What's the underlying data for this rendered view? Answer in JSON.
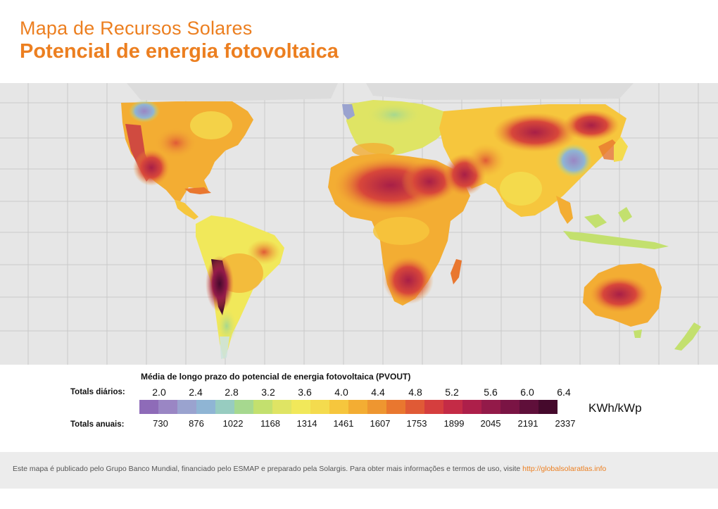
{
  "title": {
    "line1": "Mapa de Recursos Solares",
    "line2": "Potencial de energia fotovoltaica"
  },
  "legend": {
    "caption": "Média de longo prazo do potencial de energia fotovoltaica (PVOUT)",
    "daily_label": "Totals diários:",
    "annual_label": "Totals anuais:",
    "daily_ticks": [
      "2.0",
      "2.4",
      "2.8",
      "3.2",
      "3.6",
      "4.0",
      "4.4",
      "4.8",
      "5.2",
      "5.6",
      "6.0",
      "6.4"
    ],
    "annual_ticks": [
      "730",
      "876",
      "1022",
      "1168",
      "1314",
      "1461",
      "1607",
      "1753",
      "1899",
      "2045",
      "2191",
      "2337"
    ],
    "unit": "KWh/kWp",
    "colors": [
      "#8e6bb8",
      "#9a86c4",
      "#9aa3cf",
      "#8fb5d4",
      "#97ccc0",
      "#a6d88f",
      "#c3e06e",
      "#dfe464",
      "#f1e85a",
      "#f4db4e",
      "#f6c63d",
      "#f3ad33",
      "#ee9630",
      "#e9772f",
      "#e05a36",
      "#d53e3e",
      "#c42b46",
      "#ad1f4a",
      "#931a49",
      "#7a1444",
      "#5f0f3a",
      "#45092c"
    ]
  },
  "footer": {
    "text": "Este mapa é publicado pelo Grupo Banco Mundial, financiado pelo ESMAP e preparado pela Solargis. Para obter mais informações e termos de uso, visite ",
    "link": "http://globalsolaratlas.info"
  }
}
